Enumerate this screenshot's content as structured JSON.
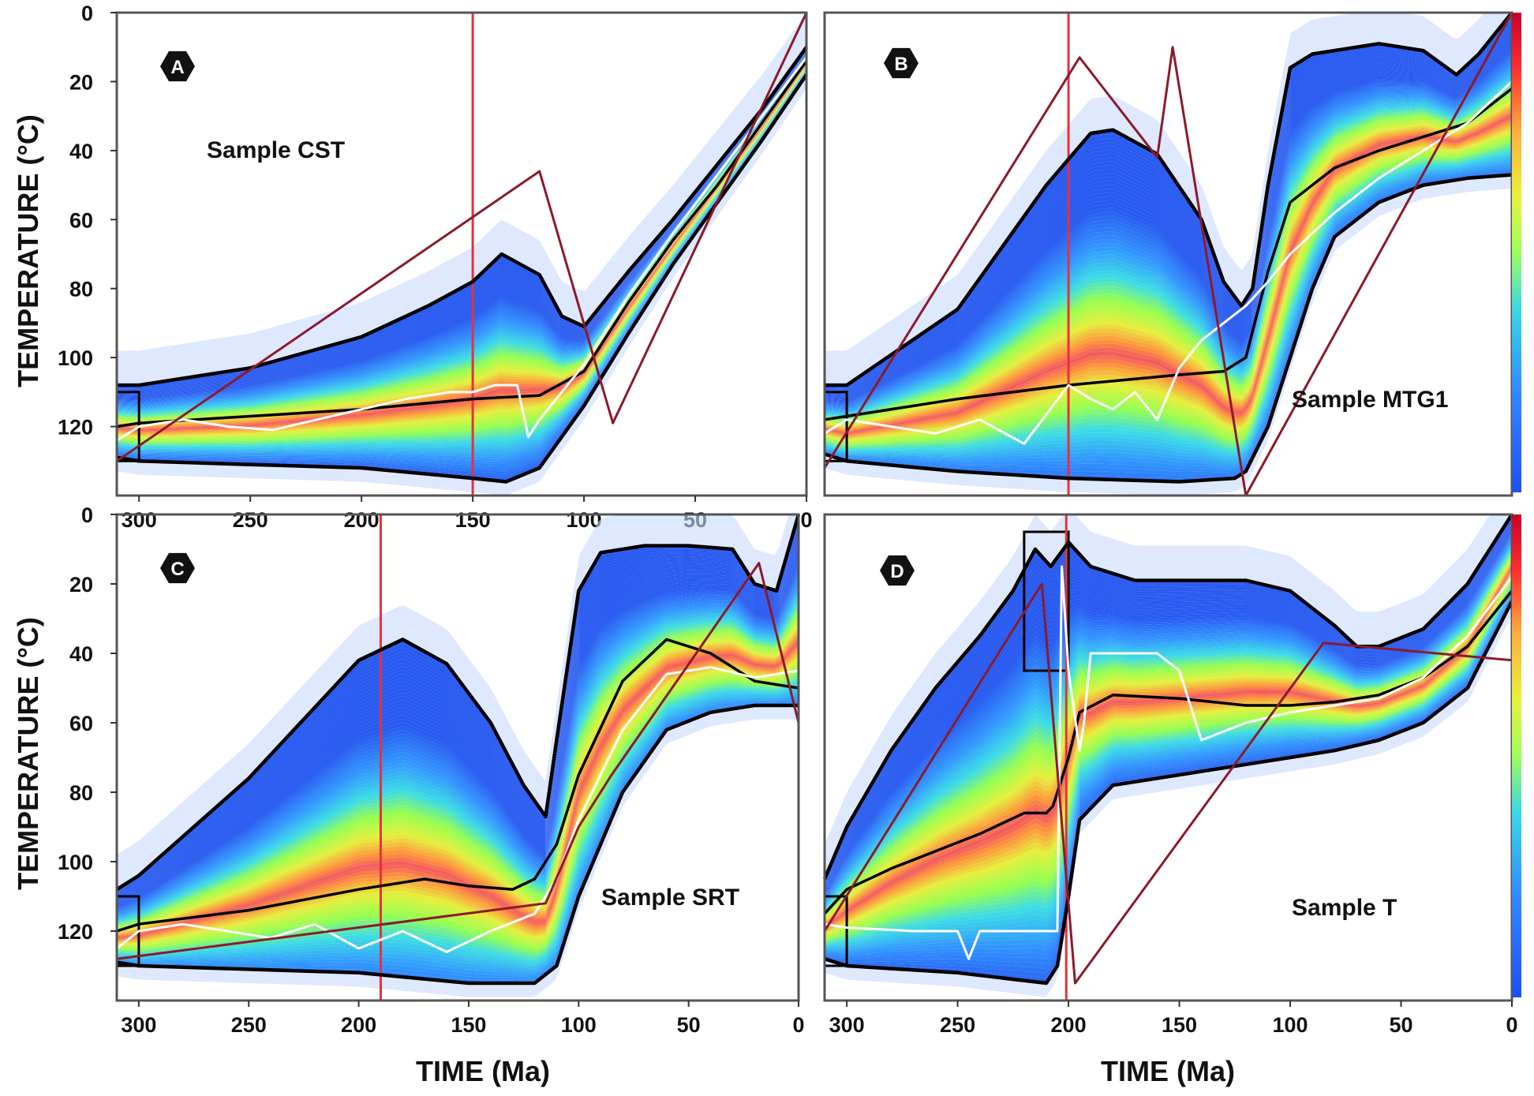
{
  "chart_data": [
    {
      "type": "heatmap",
      "panel_label": "A",
      "sample_label": "Sample CST",
      "xlabel": "",
      "ylabel": "TEMPERATURE (°C)",
      "xlim": [
        310,
        0
      ],
      "ylim": [
        0,
        140
      ],
      "x_ticks": [
        "300",
        "250",
        "200",
        "150",
        "100",
        "50",
        "0"
      ],
      "y_ticks": [
        "0",
        "20",
        "40",
        "60",
        "80",
        "100",
        "120"
      ],
      "constraint_box": {
        "t": [
          310,
          300
        ],
        "T": [
          110,
          130
        ]
      },
      "marker_line_time": 150,
      "series": [
        {
          "name": "upper-envelope",
          "x": [
            310,
            300,
            250,
            200,
            170,
            150,
            137,
            120,
            110,
            100,
            80,
            60,
            40,
            20,
            0
          ],
          "y": [
            108,
            108,
            103,
            94,
            85,
            78,
            70,
            76,
            88,
            91,
            75,
            60,
            44,
            28,
            10
          ]
        },
        {
          "name": "lower-envelope",
          "x": [
            310,
            300,
            250,
            200,
            150,
            135,
            120,
            100,
            80,
            60,
            40,
            20,
            0
          ],
          "y": [
            129,
            130,
            131,
            132,
            135,
            136,
            132,
            114,
            93,
            73,
            55,
            37,
            18
          ]
        },
        {
          "name": "expected-path",
          "x": [
            310,
            300,
            250,
            200,
            150,
            120,
            100,
            80,
            60,
            40,
            20,
            0
          ],
          "y": [
            120,
            119,
            117,
            115,
            112,
            111,
            104,
            84,
            66,
            50,
            32,
            14
          ]
        },
        {
          "name": "best-fit-path",
          "x": [
            310,
            300,
            280,
            260,
            240,
            220,
            200,
            180,
            160,
            150,
            140,
            130,
            125,
            120,
            110,
            100,
            80,
            60,
            40,
            20,
            0
          ],
          "y": [
            124,
            120,
            118,
            120,
            121,
            118,
            115,
            112,
            110,
            110,
            108,
            108,
            123,
            118,
            110,
            102,
            82,
            64,
            47,
            30,
            13
          ]
        },
        {
          "name": "red-path",
          "x": [
            310,
            120,
            87,
            0
          ],
          "y": [
            130,
            46,
            119,
            0
          ]
        }
      ]
    },
    {
      "type": "heatmap",
      "panel_label": "B",
      "sample_label": "Sample MTG1",
      "xlabel": "",
      "ylabel": "",
      "xlim": [
        310,
        0
      ],
      "ylim": [
        0,
        140
      ],
      "x_ticks": [],
      "y_ticks": [],
      "constraint_box": {
        "t": [
          310,
          300
        ],
        "T": [
          110,
          130
        ]
      },
      "marker_line_time": 200,
      "series": [
        {
          "name": "upper-envelope",
          "x": [
            310,
            300,
            250,
            210,
            190,
            180,
            160,
            140,
            130,
            122,
            117,
            110,
            100,
            90,
            80,
            60,
            40,
            25,
            15,
            0
          ],
          "y": [
            108,
            108,
            86,
            50,
            35,
            34,
            41,
            60,
            78,
            85,
            80,
            50,
            16,
            12,
            11,
            9,
            11,
            18,
            12,
            0
          ]
        },
        {
          "name": "lower-envelope",
          "x": [
            310,
            300,
            250,
            200,
            150,
            125,
            120,
            110,
            90,
            80,
            60,
            40,
            20,
            0
          ],
          "y": [
            128,
            130,
            133,
            135,
            136,
            135,
            133,
            120,
            80,
            65,
            55,
            50,
            48,
            47
          ]
        },
        {
          "name": "expected-path",
          "x": [
            310,
            300,
            250,
            200,
            150,
            130,
            120,
            110,
            100,
            80,
            60,
            40,
            20,
            0
          ],
          "y": [
            118,
            117,
            112,
            108,
            105,
            104,
            100,
            75,
            55,
            45,
            40,
            36,
            32,
            22
          ]
        },
        {
          "name": "best-fit-path",
          "x": [
            310,
            300,
            280,
            260,
            240,
            220,
            200,
            190,
            180,
            170,
            160,
            150,
            140,
            130,
            120,
            110,
            100,
            80,
            60,
            40,
            20,
            0
          ],
          "y": [
            122,
            118,
            120,
            122,
            118,
            125,
            108,
            112,
            115,
            110,
            118,
            103,
            95,
            90,
            85,
            78,
            70,
            58,
            48,
            40,
            32,
            20
          ]
        },
        {
          "name": "red-path",
          "x": [
            310,
            195,
            160,
            153,
            120,
            0
          ],
          "y": [
            132,
            13,
            42,
            10,
            140,
            0
          ]
        }
      ]
    },
    {
      "type": "heatmap",
      "panel_label": "C",
      "sample_label": "Sample SRT",
      "xlabel": "TIME (Ma)",
      "ylabel": "TEMPERATURE (°C)",
      "xlim": [
        310,
        0
      ],
      "ylim": [
        0,
        140
      ],
      "x_ticks": [
        "300",
        "250",
        "200",
        "150",
        "100",
        "50",
        "0"
      ],
      "y_ticks": [
        "0",
        "20",
        "40",
        "60",
        "80",
        "100",
        "120"
      ],
      "constraint_box": {
        "t": [
          310,
          300
        ],
        "T": [
          110,
          130
        ]
      },
      "marker_line_time": 190,
      "series": [
        {
          "name": "upper-envelope",
          "x": [
            310,
            300,
            250,
            200,
            180,
            160,
            140,
            125,
            115,
            110,
            100,
            90,
            70,
            50,
            30,
            20,
            10,
            0
          ],
          "y": [
            108,
            104,
            76,
            42,
            36,
            43,
            60,
            78,
            87,
            65,
            22,
            11,
            9,
            9,
            10,
            20,
            22,
            0
          ]
        },
        {
          "name": "lower-envelope",
          "x": [
            310,
            300,
            250,
            200,
            150,
            120,
            110,
            100,
            80,
            60,
            40,
            20,
            0
          ],
          "y": [
            129,
            130,
            131,
            132,
            135,
            135,
            130,
            110,
            80,
            62,
            57,
            55,
            55
          ]
        },
        {
          "name": "expected-path",
          "x": [
            310,
            300,
            250,
            200,
            170,
            150,
            130,
            120,
            110,
            100,
            80,
            60,
            40,
            20,
            0
          ],
          "y": [
            120,
            118,
            114,
            108,
            105,
            107,
            108,
            105,
            95,
            75,
            48,
            36,
            40,
            48,
            50
          ]
        },
        {
          "name": "best-fit-path",
          "x": [
            310,
            300,
            280,
            260,
            240,
            220,
            200,
            180,
            160,
            140,
            120,
            110,
            100,
            80,
            60,
            40,
            20,
            0
          ],
          "y": [
            125,
            120,
            118,
            120,
            122,
            118,
            125,
            120,
            126,
            120,
            115,
            105,
            88,
            62,
            46,
            44,
            47,
            45
          ]
        },
        {
          "name": "red-path",
          "x": [
            310,
            115,
            100,
            85,
            18,
            0
          ],
          "y": [
            128,
            112,
            90,
            75,
            14,
            60
          ]
        }
      ]
    },
    {
      "type": "heatmap",
      "panel_label": "D",
      "sample_label": "Sample T",
      "xlabel": "TIME (Ma)",
      "ylabel": "",
      "xlim": [
        310,
        0
      ],
      "ylim": [
        0,
        140
      ],
      "x_ticks": [
        "300",
        "250",
        "200",
        "150",
        "100",
        "50",
        "0"
      ],
      "y_ticks": [],
      "constraint_box": {
        "t": [
          310,
          300
        ],
        "T": [
          110,
          130
        ]
      },
      "second_box": {
        "t": [
          220,
          200
        ],
        "T": [
          5,
          45
        ]
      },
      "marker_line_time": 201,
      "series": [
        {
          "name": "upper-envelope",
          "x": [
            310,
            300,
            280,
            260,
            240,
            225,
            215,
            208,
            200,
            190,
            170,
            150,
            120,
            100,
            80,
            70,
            60,
            40,
            20,
            0
          ],
          "y": [
            105,
            90,
            68,
            50,
            35,
            22,
            10,
            15,
            8,
            15,
            19,
            19,
            19,
            22,
            32,
            38,
            38,
            33,
            20,
            0
          ]
        },
        {
          "name": "lower-envelope",
          "x": [
            310,
            300,
            250,
            210,
            205,
            200,
            195,
            180,
            150,
            100,
            80,
            60,
            40,
            20,
            0
          ],
          "y": [
            128,
            130,
            132,
            135,
            130,
            110,
            88,
            78,
            75,
            70,
            68,
            65,
            60,
            50,
            25
          ]
        },
        {
          "name": "expected-path",
          "x": [
            310,
            300,
            280,
            260,
            240,
            220,
            210,
            207,
            200,
            195,
            180,
            150,
            120,
            100,
            80,
            60,
            40,
            20,
            0
          ],
          "y": [
            115,
            108,
            102,
            97,
            92,
            86,
            86,
            84,
            70,
            57,
            52,
            53,
            55,
            55,
            54,
            52,
            47,
            38,
            22
          ]
        },
        {
          "name": "best-fit-path",
          "x": [
            310,
            300,
            270,
            250,
            245,
            240,
            220,
            205,
            203,
            200,
            195,
            193,
            190,
            160,
            150,
            145,
            140,
            120,
            100,
            80,
            60,
            40,
            20,
            0
          ],
          "y": [
            118,
            119,
            120,
            120,
            128,
            120,
            120,
            120,
            15,
            45,
            68,
            60,
            40,
            40,
            45,
            55,
            65,
            60,
            57,
            55,
            53,
            47,
            35,
            18
          ]
        },
        {
          "name": "red-path",
          "x": [
            310,
            212,
            197,
            85,
            0
          ],
          "y": [
            120,
            20,
            135,
            37,
            42
          ]
        }
      ]
    }
  ]
}
